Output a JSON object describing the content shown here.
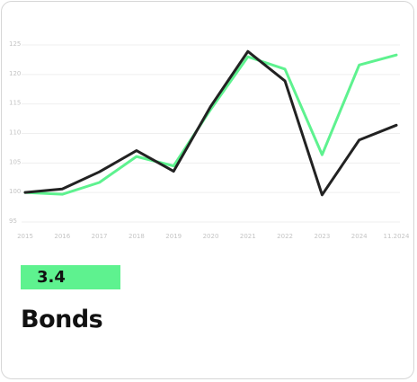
{
  "chart_data": {
    "type": "line",
    "categories": [
      "2015",
      "2016",
      "2017",
      "2018",
      "2019",
      "2020",
      "2021",
      "2022",
      "2023",
      "2024",
      "11.2024"
    ],
    "series": [
      {
        "color": "#5ef28f",
        "values": [
          100,
          99.7,
          101.7,
          106.1,
          104.5,
          114.1,
          123,
          120.9,
          106.4,
          121.6,
          123.3
        ]
      },
      {
        "color": "#222222",
        "values": [
          100,
          100.6,
          103.5,
          107.1,
          103.6,
          114.6,
          123.9,
          118.9,
          99.6,
          108.9,
          111.4
        ]
      }
    ],
    "ylim": [
      95,
      125
    ],
    "yticks": [
      95,
      100,
      105,
      110,
      115,
      120,
      125
    ],
    "grid": true
  },
  "card": {
    "value": 3.4,
    "label": "Bonds"
  }
}
